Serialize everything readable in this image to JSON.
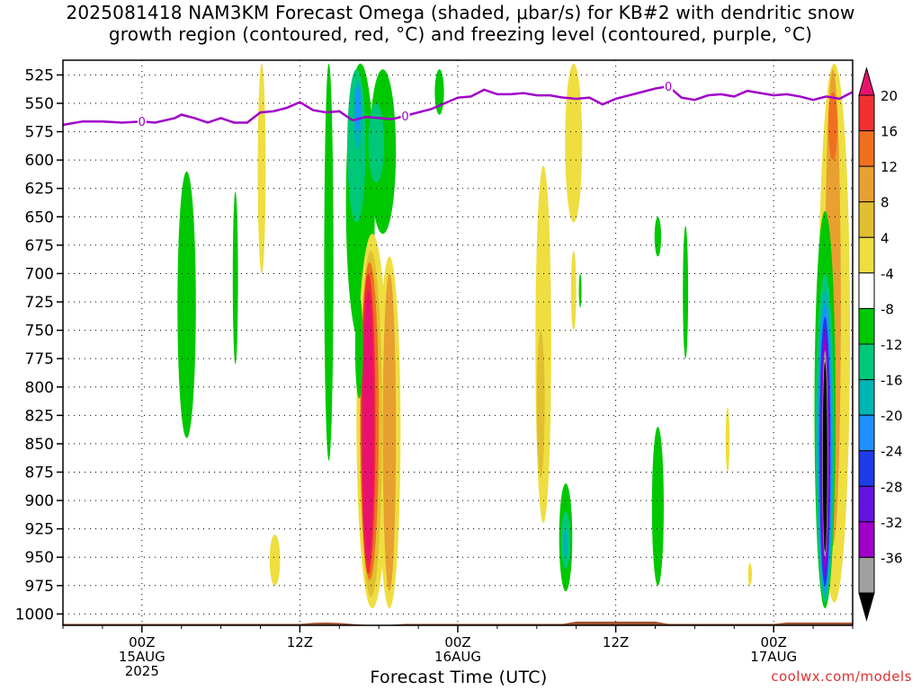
{
  "title": {
    "line1": "2025081418 NAM3KM Forecast Omega (shaded, μbar/s) for KB#2 with dendritic snow",
    "line2": "growth region (contoured, red, °C) and freezing level (contoured, purple, °C)"
  },
  "credit": "coolwx.com/models",
  "chart_data": {
    "type": "heatmap",
    "xlabel": "Forecast Time (UTC)",
    "ylabel": "",
    "x_range_hours": [
      -6,
      54
    ],
    "y_axis": "pressure (hPa), inverted",
    "ylim": [
      1010,
      512
    ],
    "y_ticks": [
      525,
      550,
      575,
      600,
      625,
      650,
      675,
      700,
      725,
      750,
      775,
      800,
      825,
      850,
      875,
      900,
      925,
      950,
      975,
      1000
    ],
    "x_ticks": [
      {
        "hour": 0,
        "line1": "00Z",
        "line2": "15AUG",
        "line3": "2025"
      },
      {
        "hour": 12,
        "line1": "12Z",
        "line2": "",
        "line3": ""
      },
      {
        "hour": 24,
        "line1": "00Z",
        "line2": "16AUG",
        "line3": ""
      },
      {
        "hour": 36,
        "line1": "12Z",
        "line2": "",
        "line3": ""
      },
      {
        "hour": 48,
        "line1": "00Z",
        "line2": "17AUG",
        "line3": ""
      }
    ],
    "grid": "dotted",
    "colorbar": {
      "orientation": "vertical",
      "placement": "right",
      "labels": [
        20,
        16,
        12,
        8,
        4,
        -4,
        -8,
        -12,
        -16,
        -20,
        -24,
        -28,
        -32,
        -36
      ],
      "bins": [
        {
          "color": "#e8126e"
        },
        {
          "color": "#f03030"
        },
        {
          "color": "#f07020"
        },
        {
          "color": "#e8a030"
        },
        {
          "color": "#e0c030"
        },
        {
          "color": "#eede40"
        },
        {
          "color": "#ffffff"
        },
        {
          "color": "#00c800"
        },
        {
          "color": "#00c878"
        },
        {
          "color": "#00b4b4"
        },
        {
          "color": "#1e90ff"
        },
        {
          "color": "#1e3ce8"
        },
        {
          "color": "#6414e0"
        },
        {
          "color": "#a000c8"
        },
        {
          "color": "#a0a0a0"
        },
        {
          "color": "#000000"
        }
      ]
    },
    "freezing_level": {
      "color": "#a000c8",
      "label": "0",
      "label_hours": [
        0,
        20,
        40
      ],
      "points": [
        [
          -6,
          569
        ],
        [
          -4.5,
          566
        ],
        [
          -3,
          566
        ],
        [
          -1.5,
          567
        ],
        [
          0,
          566
        ],
        [
          1,
          567
        ],
        [
          2.5,
          563
        ],
        [
          3,
          560
        ],
        [
          4,
          563
        ],
        [
          5,
          567
        ],
        [
          6,
          563
        ],
        [
          7,
          567
        ],
        [
          8,
          567
        ],
        [
          9,
          558
        ],
        [
          10,
          557
        ],
        [
          11,
          554
        ],
        [
          12,
          549
        ],
        [
          13,
          556
        ],
        [
          14,
          558
        ],
        [
          15,
          557
        ],
        [
          16,
          565
        ],
        [
          17,
          562
        ],
        [
          18,
          563
        ],
        [
          19,
          564
        ],
        [
          20,
          561
        ],
        [
          22,
          555
        ],
        [
          23,
          550
        ],
        [
          24,
          545
        ],
        [
          25,
          544
        ],
        [
          26,
          538
        ],
        [
          27,
          542
        ],
        [
          28,
          542
        ],
        [
          29,
          541
        ],
        [
          30,
          543
        ],
        [
          31,
          543
        ],
        [
          32,
          545
        ],
        [
          33,
          546
        ],
        [
          34,
          545
        ],
        [
          35,
          551
        ],
        [
          36,
          546
        ],
        [
          37,
          543
        ],
        [
          38,
          540
        ],
        [
          39,
          537
        ],
        [
          40,
          535
        ],
        [
          41,
          545
        ],
        [
          42,
          547
        ],
        [
          43,
          543
        ],
        [
          44,
          542
        ],
        [
          45,
          544
        ],
        [
          46,
          539
        ],
        [
          47,
          541
        ],
        [
          48,
          543
        ],
        [
          49,
          542
        ],
        [
          50,
          544
        ],
        [
          51,
          547
        ],
        [
          52,
          544
        ],
        [
          53,
          546
        ],
        [
          54,
          540
        ]
      ]
    },
    "surface_color": "#a0522d",
    "shaded_features": [
      {
        "hour": 3.4,
        "p_top": 610,
        "p_bot": 845,
        "hw": 0.7,
        "color": "#00c800"
      },
      {
        "hour": 7.1,
        "p_top": 628,
        "p_bot": 780,
        "hw": 0.2,
        "color": "#00c800"
      },
      {
        "hour": 9.1,
        "p_top": 515,
        "p_bot": 700,
        "hw": 0.3,
        "color": "#eede40"
      },
      {
        "hour": 10.1,
        "p_top": 930,
        "p_bot": 975,
        "hw": 0.4,
        "color": "#eede40"
      },
      {
        "hour": 14.2,
        "p_top": 515,
        "p_bot": 865,
        "hw": 0.35,
        "color": "#00c800"
      },
      {
        "hour": 16.6,
        "p_top": 515,
        "p_bot": 760,
        "hw": 1.1,
        "color": "#00c800"
      },
      {
        "hour": 16.3,
        "p_top": 520,
        "p_bot": 655,
        "hw": 0.7,
        "color": "#00c878"
      },
      {
        "hour": 16.4,
        "p_top": 530,
        "p_bot": 590,
        "hw": 0.35,
        "color": "#00b4b4"
      },
      {
        "hour": 16.4,
        "p_top": 535,
        "p_bot": 575,
        "hw": 0.2,
        "color": "#1e90ff"
      },
      {
        "hour": 18.3,
        "p_top": 520,
        "p_bot": 665,
        "hw": 1.0,
        "color": "#00c800"
      },
      {
        "hour": 17.8,
        "p_top": 550,
        "p_bot": 620,
        "hw": 0.6,
        "color": "#00c878"
      },
      {
        "hour": 17.5,
        "p_top": 665,
        "p_bot": 995,
        "hw": 1.2,
        "color": "#eede40"
      },
      {
        "hour": 18.8,
        "p_top": 685,
        "p_bot": 995,
        "hw": 0.85,
        "color": "#eede40"
      },
      {
        "hour": 17.4,
        "p_top": 680,
        "p_bot": 985,
        "hw": 0.85,
        "color": "#e0c030"
      },
      {
        "hour": 18.8,
        "p_top": 700,
        "p_bot": 980,
        "hw": 0.5,
        "color": "#e8a030"
      },
      {
        "hour": 17.3,
        "p_top": 690,
        "p_bot": 970,
        "hw": 0.7,
        "color": "#f07020"
      },
      {
        "hour": 17.2,
        "p_top": 700,
        "p_bot": 965,
        "hw": 0.55,
        "color": "#f03030"
      },
      {
        "hour": 17.2,
        "p_top": 715,
        "p_bot": 955,
        "hw": 0.45,
        "color": "#e8126e"
      },
      {
        "hour": 16.5,
        "p_top": 720,
        "p_bot": 810,
        "hw": 0.3,
        "color": "#00c800"
      },
      {
        "hour": 22.6,
        "p_top": 520,
        "p_bot": 560,
        "hw": 0.35,
        "color": "#00c800"
      },
      {
        "hour": 32.8,
        "p_top": 515,
        "p_bot": 655,
        "hw": 0.65,
        "color": "#eede40"
      },
      {
        "hour": 32.8,
        "p_top": 680,
        "p_bot": 750,
        "hw": 0.2,
        "color": "#eede40"
      },
      {
        "hour": 33.3,
        "p_top": 700,
        "p_bot": 730,
        "hw": 0.1,
        "color": "#00c800"
      },
      {
        "hour": 30.5,
        "p_top": 605,
        "p_bot": 920,
        "hw": 0.6,
        "color": "#eede40"
      },
      {
        "hour": 30.3,
        "p_top": 750,
        "p_bot": 880,
        "hw": 0.3,
        "color": "#e0c030"
      },
      {
        "hour": 32.2,
        "p_top": 885,
        "p_bot": 980,
        "hw": 0.5,
        "color": "#00c800"
      },
      {
        "hour": 32.2,
        "p_top": 910,
        "p_bot": 960,
        "hw": 0.35,
        "color": "#00c878"
      },
      {
        "hour": 32.2,
        "p_top": 925,
        "p_bot": 950,
        "hw": 0.2,
        "color": "#00b4b4"
      },
      {
        "hour": 39.2,
        "p_top": 650,
        "p_bot": 685,
        "hw": 0.25,
        "color": "#00c800"
      },
      {
        "hour": 41.3,
        "p_top": 658,
        "p_bot": 775,
        "hw": 0.2,
        "color": "#00c800"
      },
      {
        "hour": 39.2,
        "p_top": 835,
        "p_bot": 975,
        "hw": 0.45,
        "color": "#00c800"
      },
      {
        "hour": 44.5,
        "p_top": 818,
        "p_bot": 875,
        "hw": 0.15,
        "color": "#eede40"
      },
      {
        "hour": 46.2,
        "p_top": 955,
        "p_bot": 975,
        "hw": 0.15,
        "color": "#eede40"
      },
      {
        "hour": 52.6,
        "p_top": 515,
        "p_bot": 990,
        "hw": 1.2,
        "color": "#eede40"
      },
      {
        "hour": 52.5,
        "p_top": 520,
        "p_bot": 940,
        "hw": 0.6,
        "color": "#e8a030"
      },
      {
        "hour": 52.5,
        "p_top": 540,
        "p_bot": 600,
        "hw": 0.35,
        "color": "#f07020"
      },
      {
        "hour": 51.9,
        "p_top": 645,
        "p_bot": 995,
        "hw": 0.8,
        "color": "#00c800"
      },
      {
        "hour": 51.9,
        "p_top": 700,
        "p_bot": 990,
        "hw": 0.7,
        "color": "#00c878"
      },
      {
        "hour": 51.9,
        "p_top": 715,
        "p_bot": 985,
        "hw": 0.6,
        "color": "#00b4b4"
      },
      {
        "hour": 51.9,
        "p_top": 728,
        "p_bot": 980,
        "hw": 0.5,
        "color": "#1e90ff"
      },
      {
        "hour": 51.9,
        "p_top": 738,
        "p_bot": 975,
        "hw": 0.42,
        "color": "#1e3ce8"
      },
      {
        "hour": 51.9,
        "p_top": 748,
        "p_bot": 968,
        "hw": 0.35,
        "color": "#6414e0"
      },
      {
        "hour": 51.9,
        "p_top": 758,
        "p_bot": 960,
        "hw": 0.28,
        "color": "#a000c8"
      },
      {
        "hour": 51.9,
        "p_top": 768,
        "p_bot": 950,
        "hw": 0.22,
        "color": "#a0a0a0"
      },
      {
        "hour": 51.9,
        "p_top": 778,
        "p_bot": 945,
        "hw": 0.17,
        "color": "#000000"
      }
    ]
  }
}
